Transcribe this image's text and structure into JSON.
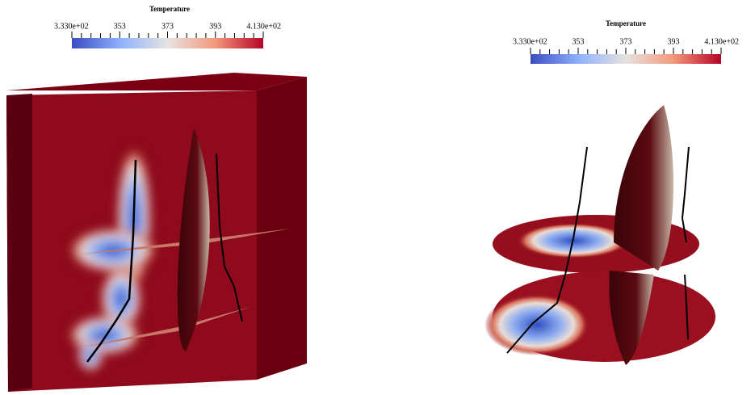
{
  "legends": [
    {
      "title": "Temperature",
      "ticks": [
        "3.330e+02",
        "353",
        "373",
        "393",
        "4.130e+02"
      ]
    },
    {
      "title": "Temperature",
      "ticks": [
        "3.330e+02",
        "353",
        "373",
        "393",
        "4.130e+02"
      ]
    }
  ]
}
